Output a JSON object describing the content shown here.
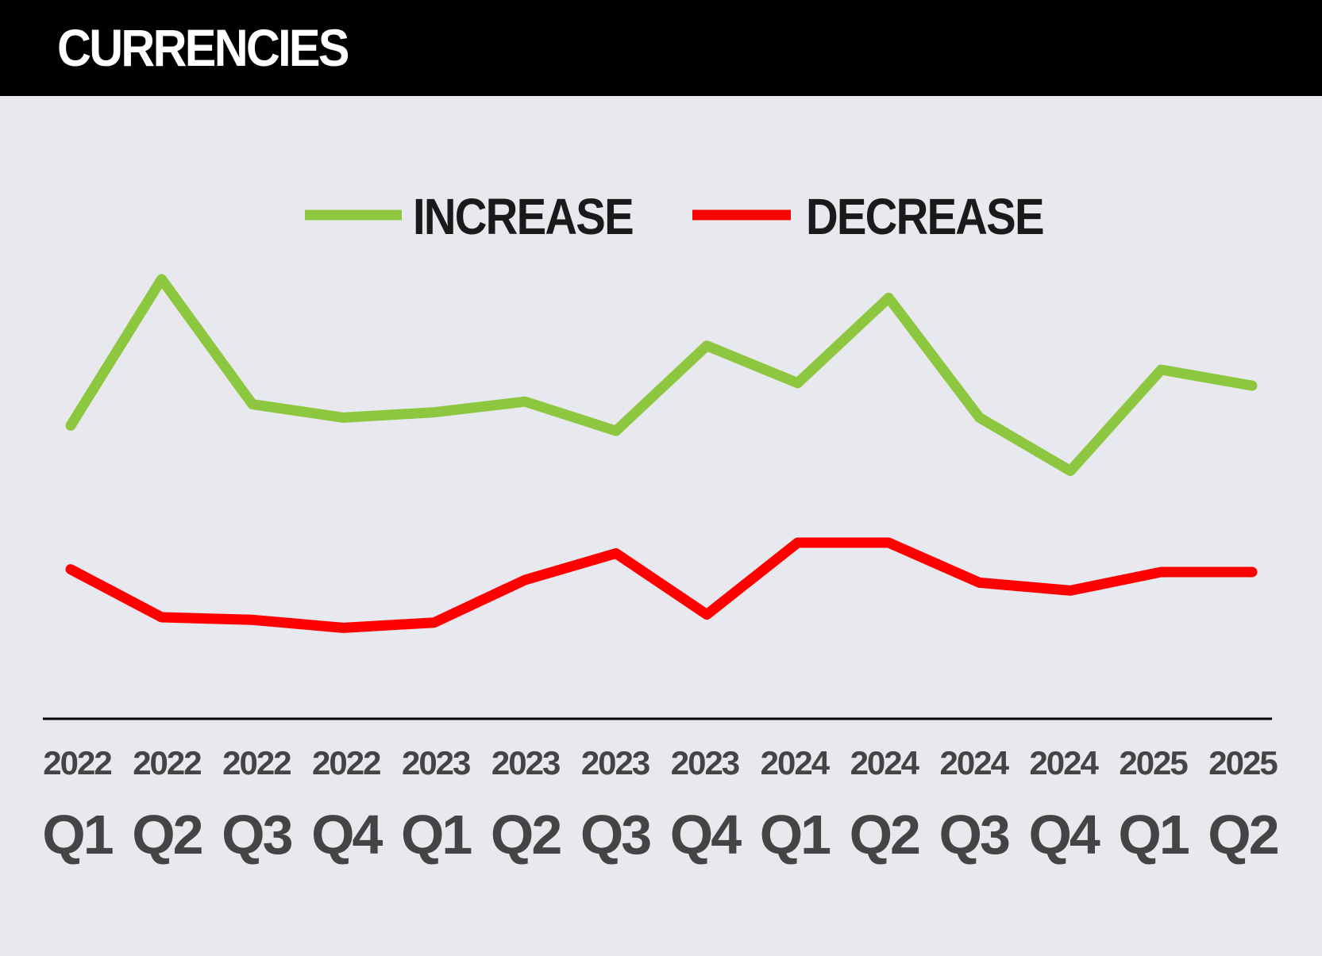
{
  "header": {
    "title": "CURRENCIES"
  },
  "colors": {
    "background": "#e8e9ee",
    "header": "#000000",
    "increase": "#8dc63f",
    "decrease": "#ff0000",
    "axis": "#000000",
    "tick_text": "#444444",
    "legend_text": "#1a1a1a"
  },
  "chart_data": {
    "type": "line",
    "title": "",
    "xlabel": "",
    "ylabel": "",
    "grid": false,
    "legend_position": "top-center",
    "y_axis_visible": false,
    "ylim": [
      0,
      100
    ],
    "categories": [
      {
        "year": "2022",
        "quarter": "Q1"
      },
      {
        "year": "2022",
        "quarter": "Q2"
      },
      {
        "year": "2022",
        "quarter": "Q3"
      },
      {
        "year": "2022",
        "quarter": "Q4"
      },
      {
        "year": "2023",
        "quarter": "Q1"
      },
      {
        "year": "2023",
        "quarter": "Q2"
      },
      {
        "year": "2023",
        "quarter": "Q3"
      },
      {
        "year": "2023",
        "quarter": "Q4"
      },
      {
        "year": "2024",
        "quarter": "Q1"
      },
      {
        "year": "2024",
        "quarter": "Q2"
      },
      {
        "year": "2024",
        "quarter": "Q3"
      },
      {
        "year": "2024",
        "quarter": "Q4"
      },
      {
        "year": "2025",
        "quarter": "Q1"
      },
      {
        "year": "2025",
        "quarter": "Q2"
      }
    ],
    "series": [
      {
        "name": "INCREASE",
        "color": "#8dc63f",
        "values": [
          67.0,
          94.5,
          71.0,
          68.5,
          69.5,
          71.5,
          66.0,
          82.0,
          75.0,
          91.0,
          68.5,
          58.5,
          77.5,
          74.5
        ]
      },
      {
        "name": "DECREASE",
        "color": "#ff0000",
        "values": [
          40.0,
          31.0,
          30.5,
          29.0,
          30.0,
          38.0,
          43.0,
          31.5,
          45.0,
          45.0,
          37.5,
          36.0,
          39.5,
          39.5
        ]
      }
    ]
  }
}
